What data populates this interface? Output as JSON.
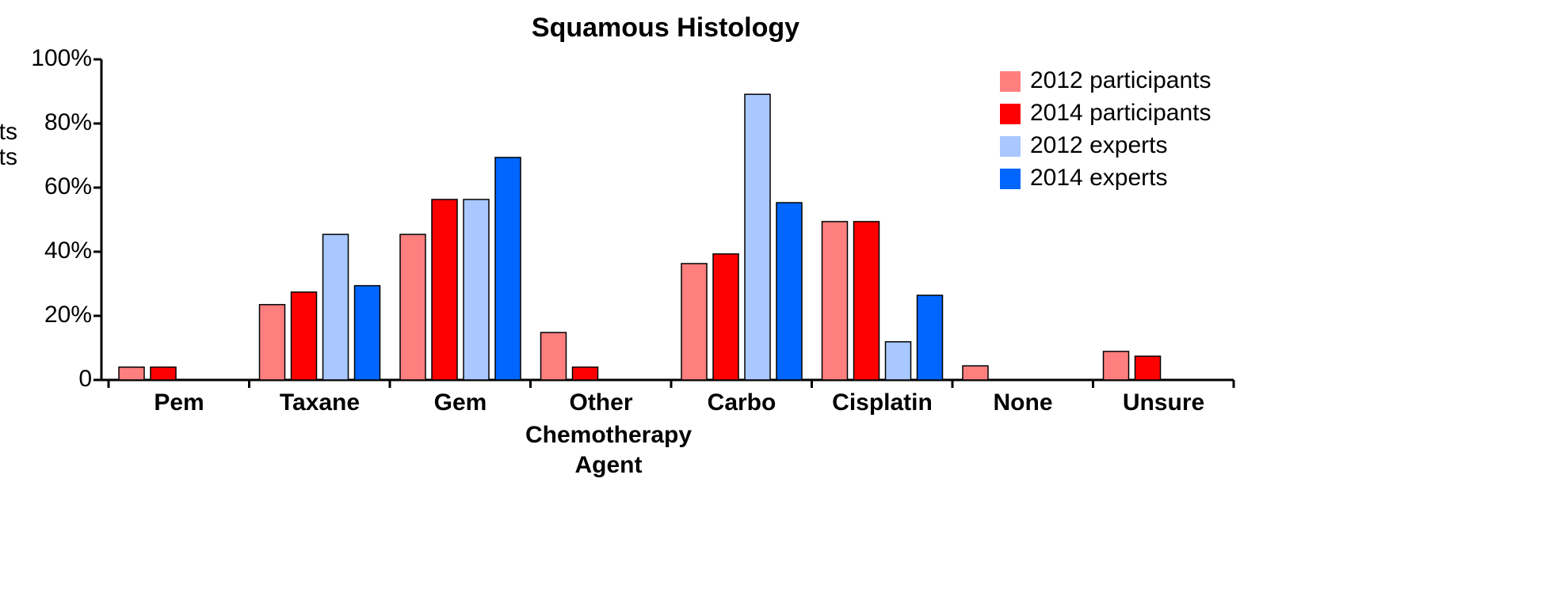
{
  "chart_data": {
    "type": "bar",
    "title": "Squamous Histology",
    "xlabel": "Chemotherapy Agent",
    "ylabel": [
      "ts",
      "ts"
    ],
    "categories": [
      "Pem",
      "Taxane",
      "Gem",
      "Other",
      "Carbo",
      "Cisplatin",
      "None",
      "Unsure"
    ],
    "series": [
      {
        "name": "2012 participants",
        "color": "#ff7f7f",
        "values": [
          4,
          23.5,
          45.4,
          14.8,
          36.3,
          49.4,
          4.4,
          8.9
        ]
      },
      {
        "name": "2014 participants",
        "color": "#ff0000",
        "values": [
          4,
          27.4,
          56.3,
          4,
          39.3,
          49.4,
          0,
          7.4
        ]
      },
      {
        "name": "2012 experts",
        "color": "#a8c8ff",
        "values": [
          0,
          45.4,
          56.3,
          0,
          89.1,
          11.9,
          0,
          0
        ]
      },
      {
        "name": "2014 experts",
        "color": "#0066ff",
        "values": [
          0,
          29.4,
          69.4,
          0,
          55.3,
          26.4,
          0,
          0
        ]
      }
    ],
    "ylim": [
      0,
      100
    ],
    "yticks": [
      0,
      {
        "value": 20,
        "label": "20%"
      },
      {
        "value": 40,
        "label": "40%"
      },
      {
        "value": 60,
        "label": "60%"
      },
      {
        "value": 80,
        "label": "80%"
      },
      {
        "value": 100,
        "label": "100%"
      }
    ],
    "legend": "upper right",
    "grid": false
  }
}
